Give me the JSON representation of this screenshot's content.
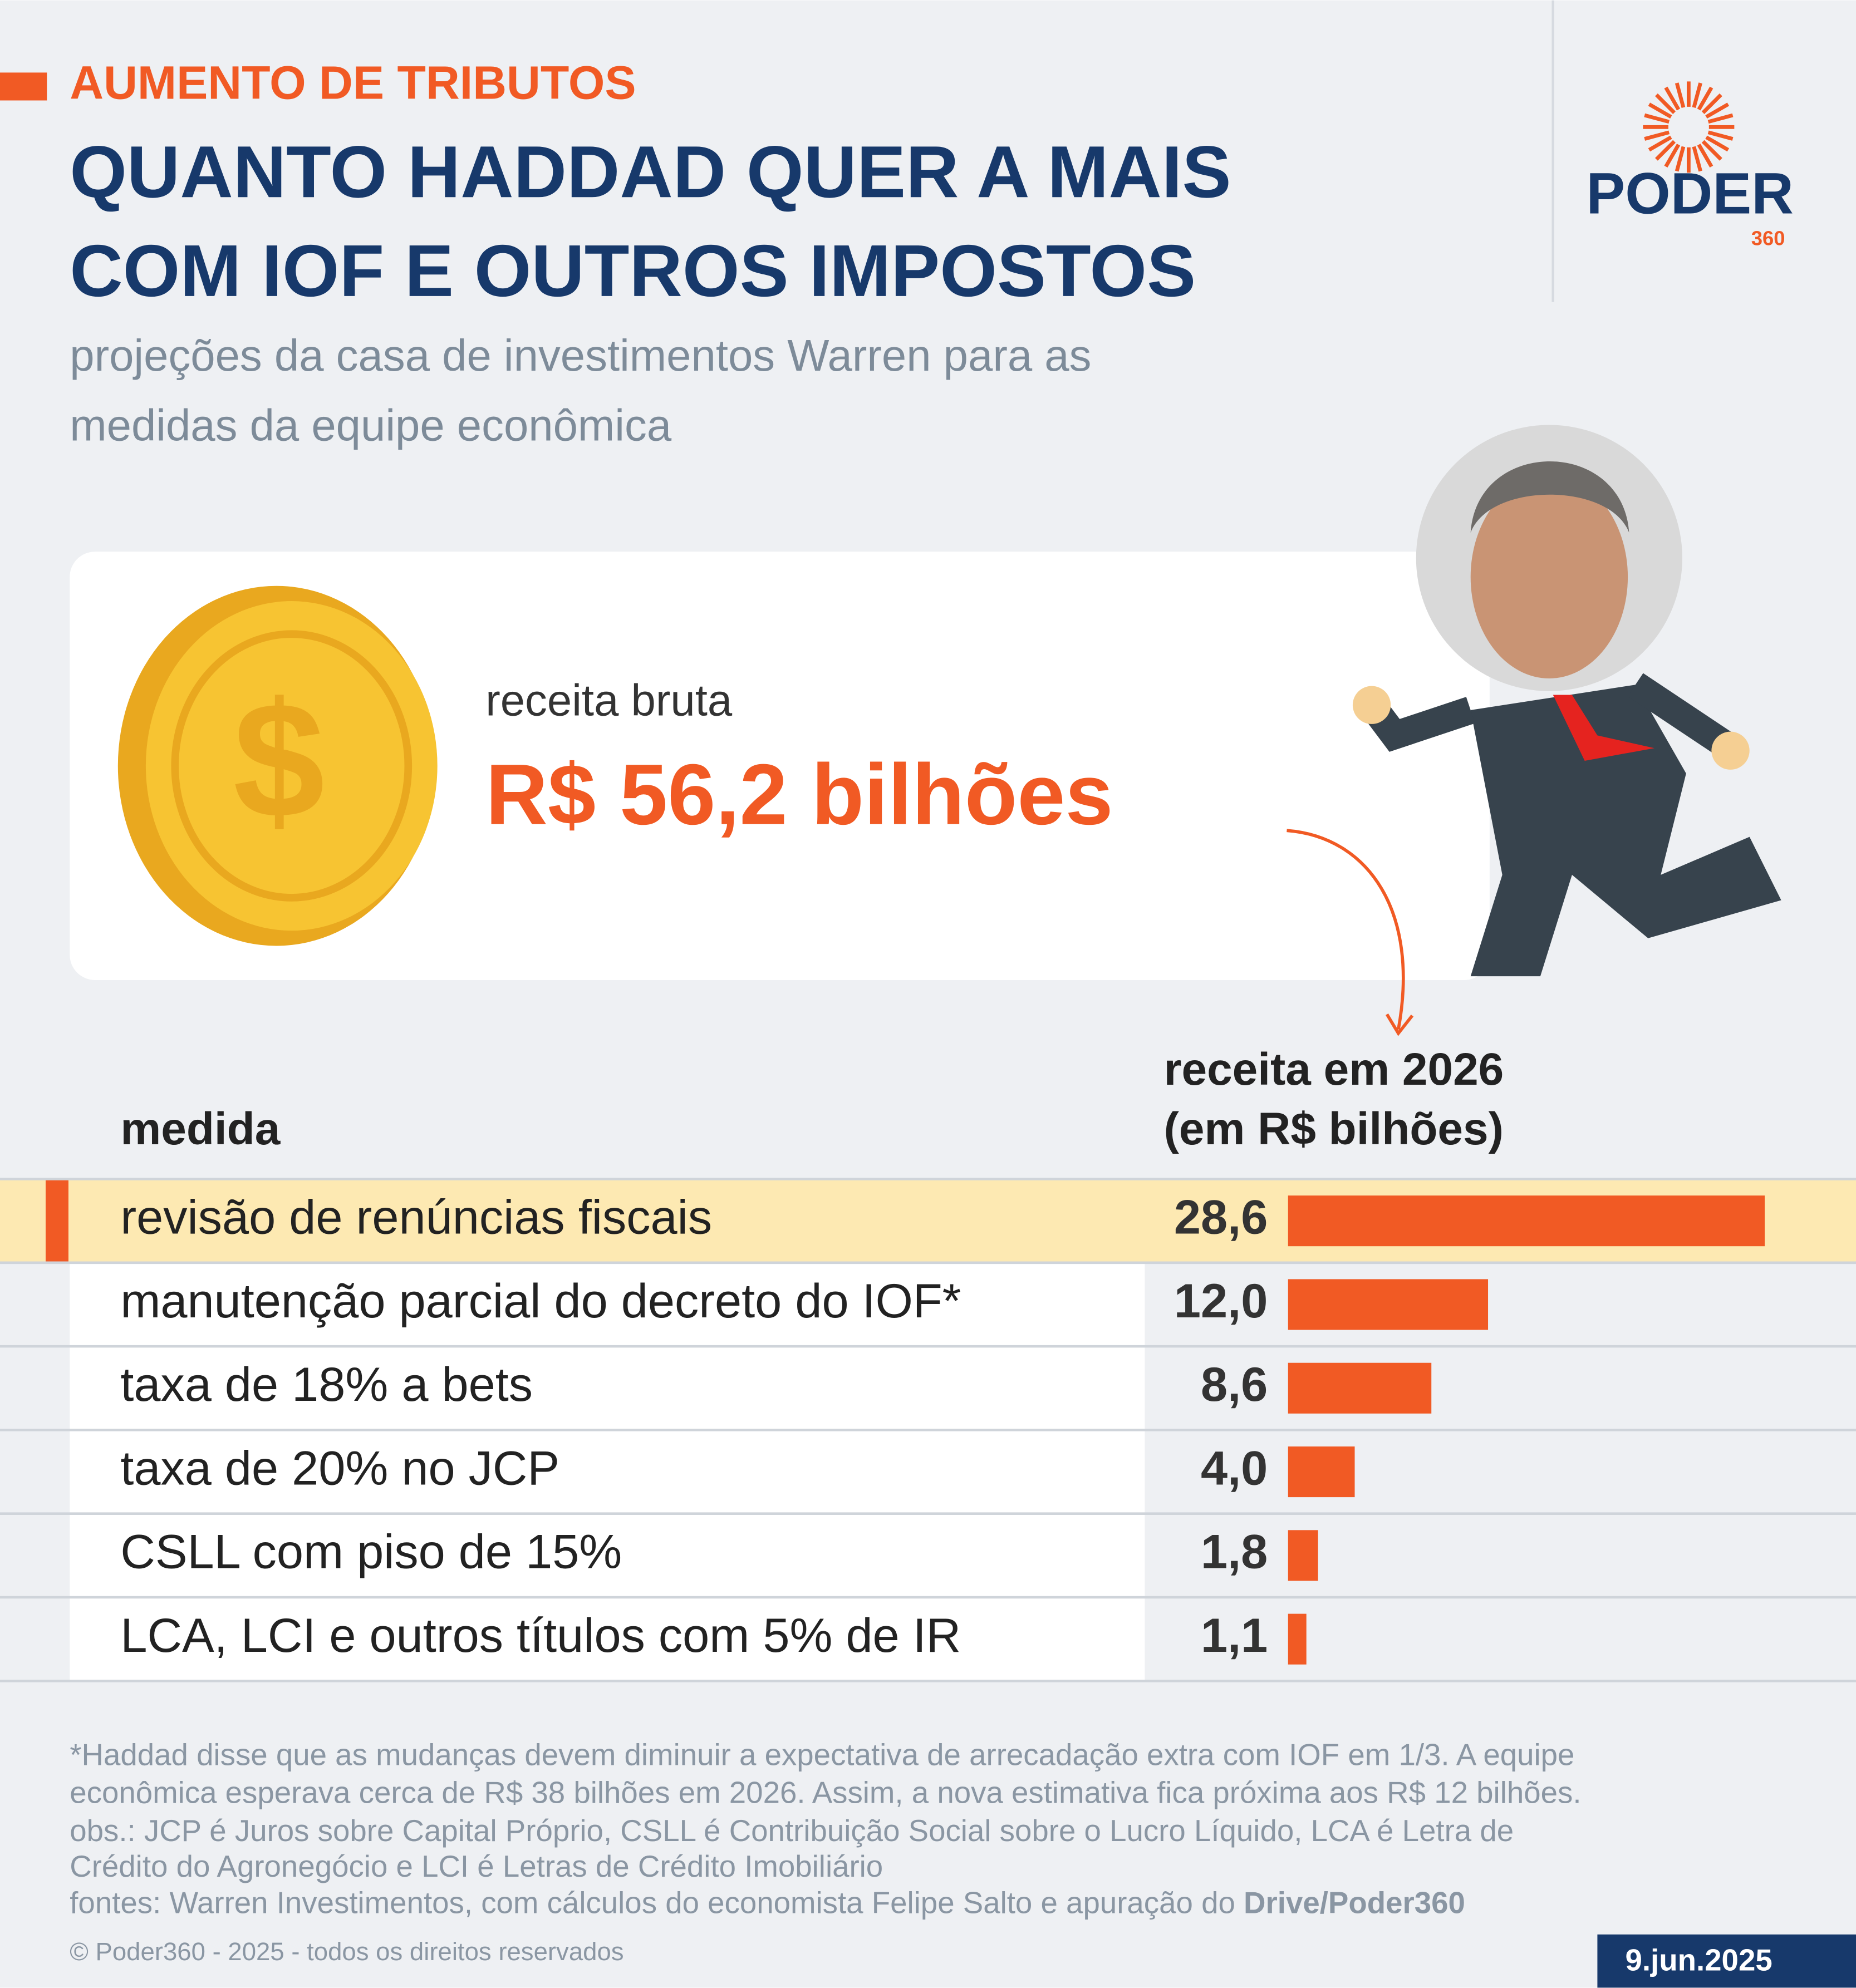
{
  "header": {
    "kicker": "AUMENTO DE TRIBUTOS",
    "title_lines": [
      "QUANTO HADDAD QUER A MAIS",
      "COM IOF E OUTROS IMPOSTOS"
    ],
    "subtitle_lines": [
      "projeções da casa de investimentos Warren para as",
      "medidas da equipe econômica"
    ]
  },
  "logo": {
    "name": "PODER",
    "number": "360"
  },
  "highlight": {
    "label": "receita bruta",
    "value_text": "R$ 56,2 bilhões"
  },
  "chart_data": {
    "type": "bar",
    "orientation": "horizontal",
    "category_header": "medida",
    "value_header_lines": [
      "receita em 2026",
      "(em R$ bilhões)"
    ],
    "categories": [
      "revisão de renúncias fiscais",
      "manutenção parcial do decreto do IOF*",
      "taxa de 18% a bets",
      "taxa de 20% no JCP",
      "CSLL com piso de 15%",
      "LCA, LCI e outros títulos com 5% de IR"
    ],
    "values": [
      28.6,
      12.0,
      8.6,
      4.0,
      1.8,
      1.1
    ],
    "value_labels": [
      "28,6",
      "12,0",
      "8,6",
      "4,0",
      "1,8",
      "1,1"
    ],
    "color": "#f15a24",
    "highlight_index": 0
  },
  "notes": {
    "lines": [
      "*Haddad disse que as mudanças devem diminuir a expectativa de arrecadação extra com IOF em 1/3. A equipe",
      "econômica esperava cerca de R$ 38 bilhões em 2026. Assim, a nova estimativa fica próxima aos R$ 12 bilhões.",
      "obs.: JCP é Juros sobre Capital Próprio, CSLL é Contribuição Social sobre o Lucro Líquido, LCA é Letra de",
      "Crédito do Agronegócio e LCI é Letras de Crédito Imobiliário"
    ],
    "sources": "fontes: Warren Investimentos, com cálculos do economista Felipe Salto e apuração do ",
    "sources_bold": "Drive/Poder360"
  },
  "footer": {
    "copyright": "© Poder360 - 2025 - todos os direitos reservados",
    "date": "9.jun.2025"
  }
}
